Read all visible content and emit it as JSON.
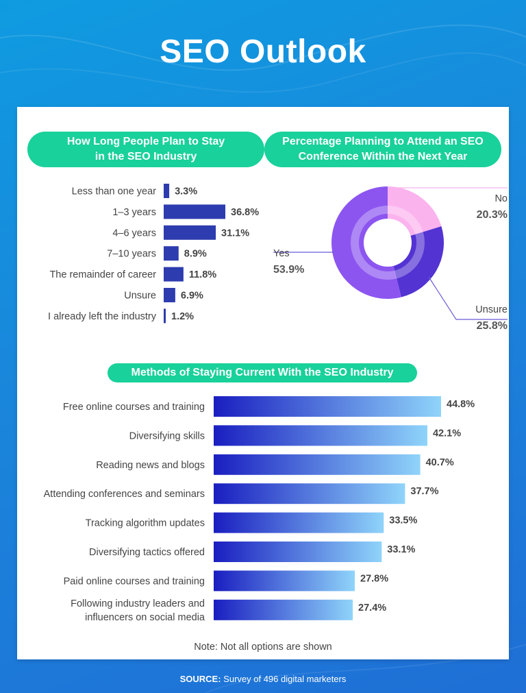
{
  "page": {
    "title": "SEO Outlook",
    "note": "Note: Not all options are shown",
    "source_label": "SOURCE:",
    "source_text": " Survey of 496 digital marketers"
  },
  "colors": {
    "pill": "#19d19a",
    "bar_dark": "#2d3cae",
    "bar_grad_start": "#1a1ec0",
    "bar_grad_end": "#8fd4fa",
    "pie_no": "#fbb3ee",
    "pie_unsure": "#5333d2",
    "pie_yes": "#8c55f0"
  },
  "chart_data": [
    {
      "type": "bar",
      "title_line1": "How Long People Plan to Stay",
      "title_line2": "in the SEO Industry",
      "orientation": "horizontal",
      "categories": [
        "Less than one year",
        "1–3 years",
        "4–6 years",
        "7–10 years",
        "The remainder of career",
        "Unsure",
        "I already left the industry"
      ],
      "values": [
        3.3,
        36.8,
        31.1,
        8.9,
        11.8,
        6.9,
        1.2
      ],
      "value_labels": [
        "3.3%",
        "36.8%",
        "31.1%",
        "8.9%",
        "11.8%",
        "6.9%",
        "1.2%"
      ],
      "unit": "%",
      "xlim": [
        0,
        40
      ]
    },
    {
      "type": "pie",
      "variant": "donut",
      "title_line1": "Percentage Planning to Attend an SEO",
      "title_line2": "Conference Within the Next Year",
      "slices": [
        {
          "label": "No",
          "value": 20.3,
          "value_label": "20.3%"
        },
        {
          "label": "Unsure",
          "value": 25.8,
          "value_label": "25.8%"
        },
        {
          "label": "Yes",
          "value": 53.9,
          "value_label": "53.9%"
        }
      ]
    },
    {
      "type": "bar",
      "title": "Methods of Staying Current With the SEO Industry",
      "orientation": "horizontal",
      "categories": [
        [
          "Free online courses and training"
        ],
        [
          "Diversifying skills"
        ],
        [
          "Reading news and blogs"
        ],
        [
          "Attending conferences and seminars"
        ],
        [
          "Tracking algorithm updates"
        ],
        [
          "Diversifying tactics offered"
        ],
        [
          "Paid online courses and training"
        ],
        [
          "Following industry leaders and",
          "influencers on social media"
        ]
      ],
      "values": [
        44.8,
        42.1,
        40.7,
        37.7,
        33.5,
        33.1,
        27.8,
        27.4
      ],
      "value_labels": [
        "44.8%",
        "42.1%",
        "40.7%",
        "37.7%",
        "33.5%",
        "33.1%",
        "27.8%",
        "27.4%"
      ],
      "unit": "%",
      "xlim": [
        0,
        45
      ]
    }
  ]
}
